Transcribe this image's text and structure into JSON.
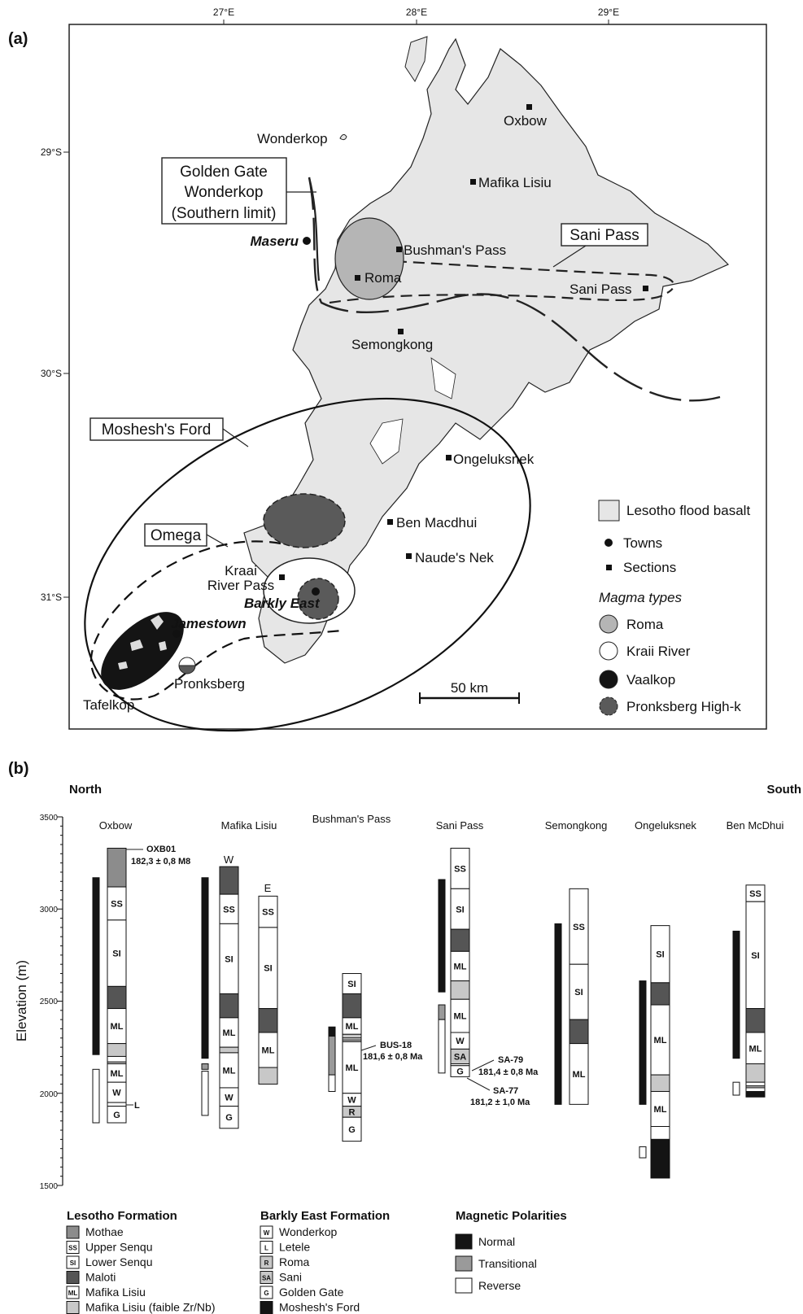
{
  "panel_a": {
    "label": "(a)",
    "lon_ticks": [
      "27°E",
      "28°E",
      "29°E"
    ],
    "lat_ticks": [
      "29°S",
      "30°S",
      "31°S"
    ],
    "sections": [
      {
        "name": "Oxbow"
      },
      {
        "name": "Mafika Lisiu"
      },
      {
        "name": "Bushman's Pass"
      },
      {
        "name": "Roma"
      },
      {
        "name": "Sani Pass"
      },
      {
        "name": "Semongkong"
      },
      {
        "name": "Ongeluksnek"
      },
      {
        "name": "Ben Macdhui"
      },
      {
        "name": "Naude's Nek"
      }
    ],
    "towns": [
      {
        "name": "Maseru"
      },
      {
        "name": "Barkly East"
      },
      {
        "name": "Jamestown"
      }
    ],
    "places": {
      "wonderkop": "Wonderkop",
      "kraai_line1": "Kraai",
      "kraai_line2": "River Pass",
      "pronksberg": "Pronksberg",
      "tafelkop": "Tafelkop"
    },
    "boxed_labels": {
      "golden_gate_1": "Golden Gate",
      "golden_gate_2": "Wonderkop",
      "golden_gate_3": "(Southern limit)",
      "sani_pass": "Sani Pass",
      "moshesh": "Moshesh's Ford",
      "omega": "Omega"
    },
    "scale_bar": "50 km",
    "legend": {
      "basalt": "Lesotho flood basalt",
      "towns": "Towns",
      "sections": "Sections",
      "magma_title": "Magma types",
      "magma": [
        {
          "name": "Roma",
          "color": "#b5b5b5"
        },
        {
          "name": "Kraii River",
          "color": "#ffffff"
        },
        {
          "name": "Vaalkop",
          "color": "#141414"
        },
        {
          "name": "Pronksberg High-k",
          "color": "#5a5a5a"
        }
      ]
    }
  },
  "panel_b": {
    "label": "(b)",
    "north": "North",
    "south": "South",
    "y_axis_label": "Elevation (m)",
    "y_ticks": [
      1500,
      2000,
      2500,
      3000,
      3500
    ],
    "y_range": [
      1500,
      3500
    ],
    "columns": [
      {
        "title": "Oxbow"
      },
      {
        "title": "Mafika Lisiu"
      },
      {
        "title": "Bushman's Pass"
      },
      {
        "title": "Sani Pass"
      },
      {
        "title": "Semongkong"
      },
      {
        "title": "Ongeluksnek"
      },
      {
        "title": "Ben McDhui"
      }
    ],
    "sub_labels": {
      "W": "W",
      "E": "E"
    },
    "samples": {
      "oxb_id": "OXB01",
      "oxb_age": "182,3 ± 0,8 M8",
      "bus_id": "BUS-18",
      "bus_age": "181,6 ± 0,8 Ma",
      "sa79_id": "SA-79",
      "sa79_age": "181,4 ± 0,8 Ma",
      "sa77_id": "SA-77",
      "sa77_age": "181,2 ± 1,0 Ma",
      "l_marker": "L"
    },
    "legend": {
      "lesotho_title": "Lesotho Formation",
      "lesotho": [
        {
          "code": "",
          "name": "Mothae",
          "color": "#8c8c8c"
        },
        {
          "code": "SS",
          "name": "Upper Senqu",
          "color": "#ffffff"
        },
        {
          "code": "SI",
          "name": "Lower Senqu",
          "color": "#ffffff"
        },
        {
          "code": "",
          "name": "Maloti",
          "color": "#555555"
        },
        {
          "code": "ML",
          "name": "Mafika Lisiu",
          "color": "#ffffff"
        },
        {
          "code": "",
          "name": "Mafika Lisiu (faible Zr/Nb)",
          "color": "#c8c8c8"
        }
      ],
      "barkly_title": "Barkly East Formation",
      "barkly": [
        {
          "code": "W",
          "name": "Wonderkop",
          "color": "#ffffff"
        },
        {
          "code": "L",
          "name": "Letele",
          "color": "#ffffff"
        },
        {
          "code": "R",
          "name": "Roma",
          "color": "#c8c8c8"
        },
        {
          "code": "SA",
          "name": "Sani",
          "color": "#c8c8c8"
        },
        {
          "code": "G",
          "name": "Golden Gate",
          "color": "#ffffff"
        },
        {
          "code": "",
          "name": "Moshesh's Ford",
          "color": "#141414"
        }
      ],
      "polarity_title": "Magnetic Polarities",
      "polarity": [
        {
          "name": "Normal",
          "color": "#141414"
        },
        {
          "name": "Transitional",
          "color": "#9a9a9a"
        },
        {
          "name": "Reverse",
          "color": "#ffffff"
        }
      ]
    }
  }
}
